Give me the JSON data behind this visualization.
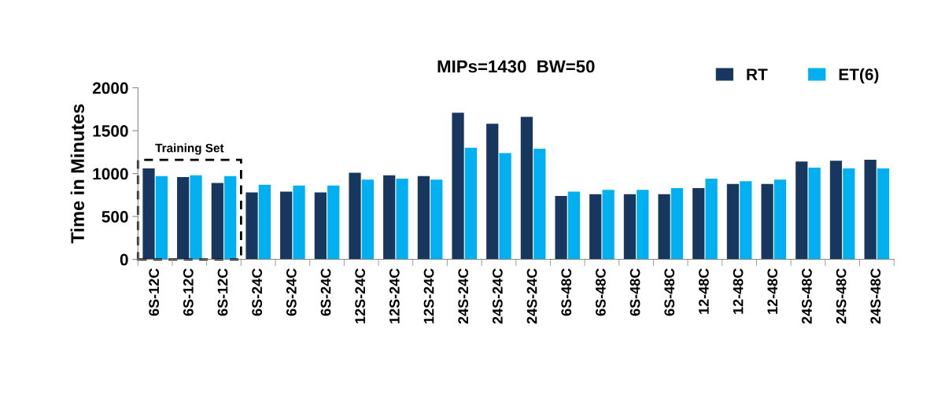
{
  "chart_data": {
    "type": "bar",
    "title": "MIPs=1430  BW=50",
    "ylabel": "Time in Minutes",
    "categories": [
      "6S-12C",
      "6S-12C",
      "6S-12C",
      "6S-24C",
      "6S-24C",
      "6S-24C",
      "12S-24C",
      "12S-24C",
      "12S-24C",
      "24S-24C",
      "24S-24C",
      "24S-24C",
      "6S-48C",
      "6S-48C",
      "6S-48C",
      "6S-48C",
      "12-48C",
      "12-48C",
      "12-48C",
      "24S-48C",
      "24S-48C",
      "24S-48C"
    ],
    "series": [
      {
        "name": "RT",
        "color": "#17375e",
        "values": [
          1060,
          960,
          890,
          780,
          790,
          780,
          1010,
          980,
          970,
          1710,
          1580,
          1660,
          740,
          760,
          760,
          760,
          830,
          880,
          880,
          1140,
          1150,
          1160
        ]
      },
      {
        "name": "ET(6)",
        "color": "#00b0f0",
        "values": [
          970,
          980,
          970,
          870,
          860,
          860,
          930,
          940,
          930,
          1300,
          1240,
          1290,
          790,
          810,
          810,
          830,
          940,
          910,
          930,
          1070,
          1060,
          1060
        ]
      }
    ],
    "ylim": [
      0,
      2000
    ],
    "yticks": [
      0,
      500,
      1000,
      1500,
      2000
    ],
    "grid": false,
    "legend": "top right",
    "annotations": [
      "Training Set"
    ]
  }
}
